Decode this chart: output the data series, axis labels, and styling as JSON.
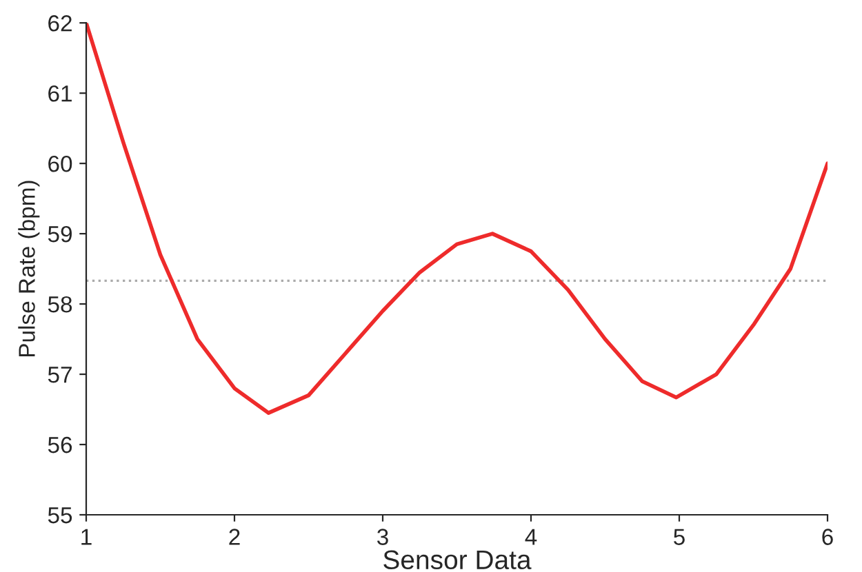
{
  "chart_data": {
    "type": "line",
    "xlabel": "Sensor Data",
    "ylabel": "Pulse Rate (bpm)",
    "x": [
      1,
      1.25,
      1.5,
      1.75,
      2,
      2.23,
      2.5,
      2.75,
      3,
      3.25,
      3.5,
      3.74,
      4,
      4.25,
      4.5,
      4.75,
      4.98,
      5.25,
      5.5,
      5.75,
      6
    ],
    "series": [
      {
        "color": "#ee2b2b",
        "values": [
          62,
          60.3,
          58.7,
          57.5,
          56.8,
          56.45,
          56.7,
          57.3,
          57.9,
          58.45,
          58.85,
          59.0,
          58.75,
          58.2,
          57.5,
          56.9,
          56.67,
          57.0,
          57.7,
          58.5,
          60
        ]
      }
    ],
    "ref_lines": [
      {
        "axis": "y",
        "value": 58.33,
        "color": "#aaaaaa",
        "line_style": "dotted"
      }
    ],
    "xlim": [
      1,
      6
    ],
    "ylim": [
      55,
      62
    ],
    "xticks": [
      1,
      2,
      3,
      4,
      5,
      6
    ],
    "yticks": [
      55,
      56,
      57,
      58,
      59,
      60,
      61,
      62
    ],
    "grid": false,
    "legend": false,
    "marker": "none",
    "line_style": "solid"
  }
}
